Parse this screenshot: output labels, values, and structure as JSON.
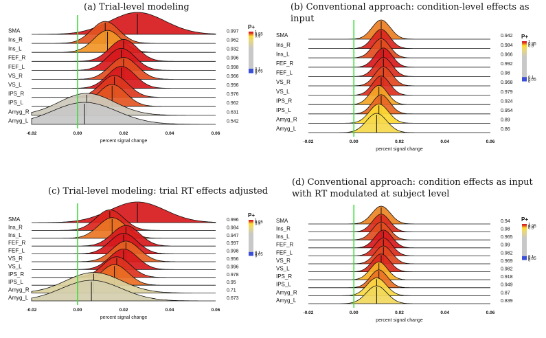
{
  "panels": [
    {
      "id": "a",
      "title": "(a) Trial-level modeling"
    },
    {
      "id": "b",
      "title": "(b) Conventional approach: condition-level effects as input"
    },
    {
      "id": "c",
      "title": "(c) Trial-level modeling: trial RT effects adjusted"
    },
    {
      "id": "d",
      "title": "(d) Conventional approach: condition effects as input with RT modulated at subject level"
    }
  ],
  "legend": {
    "title": "P+",
    "ticks": [
      "1",
      "0.95",
      "0.9",
      "0.1",
      "0.05",
      "0"
    ]
  },
  "colors": {
    "zero_line": "#3ddc3a",
    "high": "#d7191c",
    "mid": "#ffd92b",
    "neutral": "#c8c8c8",
    "low": "#3a4fd8"
  },
  "chart_data": [
    {
      "type": "ridgeline",
      "panel": "a",
      "xlabel": "percent signal change",
      "xlim": [
        -0.02,
        0.06
      ],
      "xticks": [
        "-0.02",
        "0.00",
        "0.02",
        "0.04",
        "0.06"
      ],
      "regions": [
        "SMA",
        "Ins_R",
        "Ins_L",
        "FEF_R",
        "FEF_L",
        "VS_R",
        "VS_L",
        "IPS_R",
        "IPS_L",
        "Amyg_R",
        "Amyg_L"
      ],
      "p_values": [
        "0.997",
        "0.962",
        "0.932",
        "0.996",
        "0.998",
        "0.966",
        "0.996",
        "0.976",
        "0.962",
        "0.631",
        "0.542"
      ],
      "means": [
        0.026,
        0.012,
        0.013,
        0.02,
        0.019,
        0.02,
        0.019,
        0.016,
        0.015,
        0.004,
        0.003
      ],
      "sds": [
        0.012,
        0.006,
        0.006,
        0.006,
        0.006,
        0.006,
        0.006,
        0.006,
        0.006,
        0.012,
        0.014
      ]
    },
    {
      "type": "ridgeline",
      "panel": "b",
      "xlabel": "percent signal change",
      "xlim": [
        -0.02,
        0.06
      ],
      "xticks": [
        "-0.02",
        "0.00",
        "0.02",
        "0.04",
        "0.06"
      ],
      "regions": [
        "SMA",
        "Ins_R",
        "Ins_L",
        "FEF_R",
        "FEF_L",
        "VS_R",
        "VS_L",
        "IPS_R",
        "IPS_L",
        "Amyg_R",
        "Amyg_L"
      ],
      "p_values": [
        "0.942",
        "0.984",
        "0.966",
        "0.992",
        "0.98",
        "0.968",
        "0.979",
        "0.924",
        "0.954",
        "0.89",
        "0.86"
      ],
      "means": [
        0.012,
        0.012,
        0.012,
        0.013,
        0.013,
        0.013,
        0.012,
        0.011,
        0.012,
        0.011,
        0.01
      ],
      "sds": [
        0.004,
        0.0038,
        0.0038,
        0.0038,
        0.0038,
        0.0038,
        0.0038,
        0.0038,
        0.0038,
        0.0042,
        0.0045
      ]
    },
    {
      "type": "ridgeline",
      "panel": "c",
      "xlabel": "percent signal change",
      "xlim": [
        -0.02,
        0.06
      ],
      "xticks": [
        "-0.02",
        "0.00",
        "0.02",
        "0.04",
        "0.06"
      ],
      "regions": [
        "SMA",
        "Ins_R",
        "Ins_L",
        "FEF_R",
        "FEF_L",
        "VS_R",
        "VS_L",
        "IPS_R",
        "IPS_L",
        "Amyg_R",
        "Amyg_L"
      ],
      "p_values": [
        "0.996",
        "0.984",
        "0.947",
        "0.997",
        "0.998",
        "0.956",
        "0.996",
        "0.978",
        "0.95",
        "0.71",
        "0.673"
      ],
      "means": [
        0.026,
        0.014,
        0.015,
        0.021,
        0.02,
        0.021,
        0.02,
        0.017,
        0.016,
        0.007,
        0.006
      ],
      "sds": [
        0.012,
        0.006,
        0.006,
        0.006,
        0.006,
        0.006,
        0.006,
        0.006,
        0.006,
        0.012,
        0.013
      ]
    },
    {
      "type": "ridgeline",
      "panel": "d",
      "xlabel": "percent signal change",
      "xlim": [
        -0.02,
        0.06
      ],
      "xticks": [
        "-0.02",
        "0.00",
        "0.02",
        "0.04",
        "0.06"
      ],
      "regions": [
        "SMA",
        "Ins_R",
        "Ins_L",
        "FEF_R",
        "FEF_L",
        "VS_R",
        "VS_L",
        "IPS_R",
        "IPS_L",
        "Amyg_R",
        "Amyg_L"
      ],
      "p_values": [
        "0.94",
        "0.98",
        "0.965",
        "0.99",
        "0.982",
        "0.969",
        "0.982",
        "0.918",
        "0.949",
        "0.87",
        "0.839"
      ],
      "means": [
        0.012,
        0.012,
        0.012,
        0.013,
        0.013,
        0.013,
        0.012,
        0.011,
        0.011,
        0.01,
        0.01
      ],
      "sds": [
        0.004,
        0.0038,
        0.0038,
        0.0038,
        0.0038,
        0.0038,
        0.0038,
        0.0038,
        0.0038,
        0.0042,
        0.0045
      ]
    }
  ]
}
